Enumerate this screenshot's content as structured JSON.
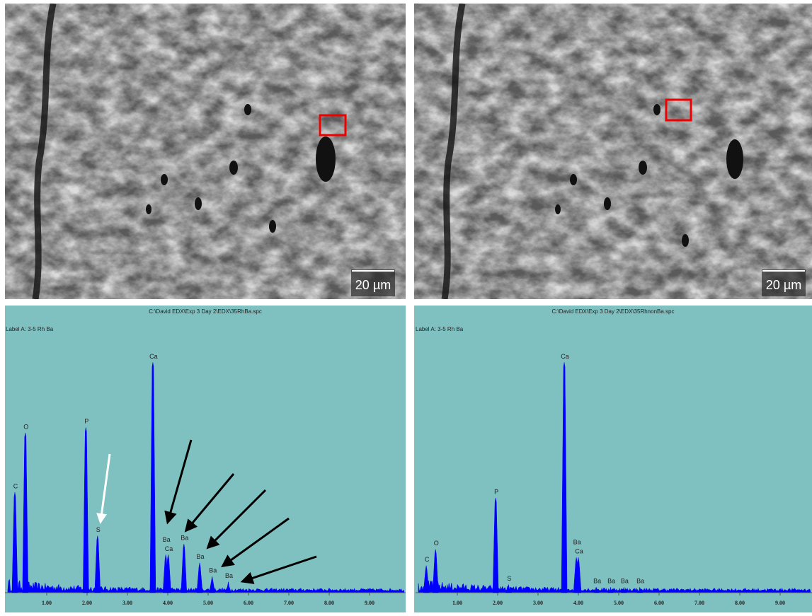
{
  "images": [
    {
      "scale_bar": "20 µm"
    },
    {
      "scale_bar": "20 µm"
    }
  ],
  "chart_data": [
    {
      "type": "spectrum",
      "title": "C:\\David EDX\\Exp 3 Day 2\\EDX\\35RhBa.spc",
      "subtitle": "Label A: 3-5 Rh Ba",
      "categories": [
        "C",
        "O",
        "P",
        "S",
        "Ca",
        "Ba",
        "Ca",
        "Ba",
        "Ba",
        "Ba",
        "Ba"
      ],
      "x": [
        0.21,
        0.47,
        1.97,
        2.26,
        3.63,
        3.95,
        4.01,
        4.4,
        4.79,
        5.1,
        5.5
      ],
      "values": [
        37,
        59,
        61,
        21,
        85,
        14,
        14,
        18,
        11,
        6,
        4
      ],
      "color": "#0000ff",
      "xlim": [
        0,
        10
      ],
      "ylim": [
        0,
        100
      ],
      "xticks": [
        {
          "value": 1,
          "label": "1.00"
        },
        {
          "value": 2,
          "label": "2.00"
        },
        {
          "value": 3,
          "label": "3.00"
        },
        {
          "value": 4,
          "label": "4.00"
        },
        {
          "value": 5,
          "label": "5.00"
        },
        {
          "value": 6,
          "label": "6.00"
        },
        {
          "value": 7,
          "label": "7.00"
        },
        {
          "value": 8,
          "label": "8.00"
        },
        {
          "value": 9,
          "label": "9.00"
        }
      ]
    },
    {
      "type": "spectrum",
      "title": "C:\\David EDX\\Exp 3 Day 2\\EDX\\35RhnonBa.spc",
      "subtitle": "Label A: 3-5 Rh Ba",
      "categories": [
        "C",
        "O",
        "P",
        "S",
        "Ca",
        "Ba",
        "Ca",
        "Ba",
        "Ba",
        "Ba",
        "Ba"
      ],
      "x": [
        0.23,
        0.46,
        1.95,
        2.27,
        3.65,
        3.95,
        4.0,
        4.45,
        4.8,
        5.13,
        5.52
      ],
      "values": [
        10,
        16,
        35,
        3,
        85,
        13,
        13,
        2,
        2,
        2,
        2
      ],
      "color": "#0000ff",
      "xlim": [
        0,
        10
      ],
      "ylim": [
        0,
        100
      ],
      "xticks": [
        {
          "value": 1,
          "label": "1.00"
        },
        {
          "value": 2,
          "label": "2.00"
        },
        {
          "value": 3,
          "label": "3.00"
        },
        {
          "value": 4,
          "label": "4.00"
        },
        {
          "value": 5,
          "label": "5.00"
        },
        {
          "value": 6,
          "label": "6.00"
        },
        {
          "value": 7,
          "label": "7.00"
        },
        {
          "value": 8,
          "label": "8.00"
        },
        {
          "value": 9,
          "label": "9.00"
        }
      ]
    }
  ]
}
